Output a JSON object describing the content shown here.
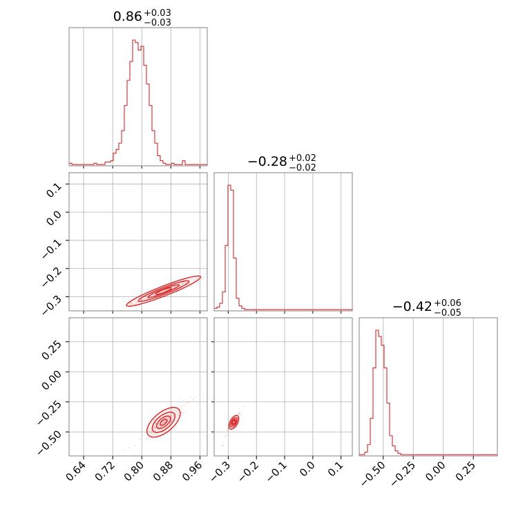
{
  "colors": {
    "accent": "#d62728",
    "frame": "#808080",
    "grid": "#b0b0b0",
    "text": "#000000"
  },
  "chart_data": {
    "type": "corner",
    "params": [
      {
        "title_main": "0.86",
        "title_plus": "+0.03",
        "title_minus": "−0.03",
        "range": [
          0.6,
          0.98
        ],
        "ticks": [
          {
            "v": 0.64,
            "label": "0.64"
          },
          {
            "v": 0.72,
            "label": "0.72"
          },
          {
            "v": 0.8,
            "label": "0.80"
          },
          {
            "v": 0.88,
            "label": "0.88"
          },
          {
            "v": 0.96,
            "label": "0.96"
          }
        ]
      },
      {
        "title_main": "−0.28",
        "title_plus": "+0.02",
        "title_minus": "−0.02",
        "range": [
          -0.35,
          0.14
        ],
        "ticks": [
          {
            "v": -0.3,
            "label": "−0.3"
          },
          {
            "v": -0.2,
            "label": "−0.2"
          },
          {
            "v": -0.1,
            "label": "−0.1"
          },
          {
            "v": 0.0,
            "label": "0.0"
          },
          {
            "v": 0.1,
            "label": "0.1"
          }
        ]
      },
      {
        "title_main": "−0.42",
        "title_plus": "+0.06",
        "title_minus": "−0.05",
        "range": [
          -0.7,
          0.45
        ],
        "ticks": [
          {
            "v": -0.5,
            "label": "−0.50"
          },
          {
            "v": -0.25,
            "label": "−0.25"
          },
          {
            "v": 0.0,
            "label": "0.00"
          },
          {
            "v": 0.25,
            "label": "0.25"
          }
        ]
      }
    ],
    "histograms": [
      {
        "bin_start": 0.6,
        "bin_width": 0.0076,
        "counts": [
          2,
          1,
          1,
          1,
          1,
          1,
          1,
          1,
          1,
          2,
          1,
          1,
          1,
          3,
          3,
          4,
          10,
          13,
          18,
          28,
          48,
          68,
          83,
          100,
          98,
          92,
          95,
          80,
          65,
          48,
          28,
          18,
          8,
          4,
          2,
          1,
          1,
          2,
          1,
          1,
          1,
          4,
          1,
          1,
          1,
          1,
          1,
          1,
          1,
          1
        ]
      },
      {
        "bin_start": -0.35,
        "bin_width": 0.0098,
        "counts": [
          2,
          3,
          6,
          15,
          52,
          100,
          96,
          42,
          10,
          4,
          2,
          1,
          1,
          1,
          1,
          1,
          1,
          1,
          1,
          1,
          1,
          1,
          1,
          1,
          1,
          1,
          1,
          1,
          1,
          1,
          1,
          1,
          1,
          1,
          1,
          1,
          1,
          1,
          1,
          1,
          1,
          1,
          1,
          1,
          1,
          1,
          1,
          1,
          1,
          1
        ]
      },
      {
        "bin_start": -0.7,
        "bin_width": 0.023,
        "counts": [
          1,
          1,
          3,
          9,
          30,
          70,
          100,
          95,
          88,
          70,
          42,
          16,
          8,
          4,
          2,
          1,
          1,
          1,
          1,
          1,
          1,
          1,
          1,
          1,
          1,
          1,
          1,
          1,
          1,
          1,
          1,
          1,
          1,
          1,
          1,
          1,
          1,
          1,
          1,
          1,
          1,
          1,
          1,
          1,
          1,
          1,
          1,
          1,
          1,
          1
        ]
      }
    ],
    "correlations": [
      {
        "x": 0,
        "y": 1,
        "slope": 0.5,
        "x0": 0.86,
        "y0": -0.28,
        "sd_major": 0.06,
        "sd_minor": 0.006
      },
      {
        "x": 0,
        "y": 2,
        "slope": 2.5,
        "x0": 0.86,
        "y0": -0.42,
        "sd_major": 0.06,
        "sd_minor": 0.012
      },
      {
        "x": 1,
        "y": 2,
        "slope": 4.5,
        "x0": -0.28,
        "y0": -0.42,
        "sd_major": 0.03,
        "sd_minor": 0.006
      }
    ]
  }
}
